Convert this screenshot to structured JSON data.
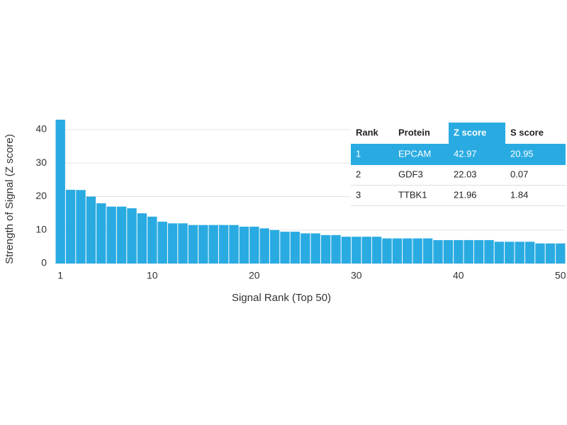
{
  "chart_data": {
    "type": "bar",
    "x_label": "Signal Rank (Top 50)",
    "y_label": "Strength of Signal (Z score)",
    "x": [
      1,
      2,
      3,
      4,
      5,
      6,
      7,
      8,
      9,
      10,
      11,
      12,
      13,
      14,
      15,
      16,
      17,
      18,
      19,
      20,
      21,
      22,
      23,
      24,
      25,
      26,
      27,
      28,
      29,
      30,
      31,
      32,
      33,
      34,
      35,
      36,
      37,
      38,
      39,
      40,
      41,
      42,
      43,
      44,
      45,
      46,
      47,
      48,
      49,
      50
    ],
    "values": [
      42.97,
      22.03,
      21.96,
      20,
      18,
      17,
      17,
      16.5,
      15,
      14,
      12.5,
      12,
      12,
      11.5,
      11.5,
      11.5,
      11.5,
      11.5,
      11,
      11,
      10.5,
      10,
      9.5,
      9.5,
      9,
      9,
      8.5,
      8.5,
      8,
      8,
      8,
      8,
      7.5,
      7.5,
      7.5,
      7.5,
      7.5,
      7,
      7,
      7,
      7,
      7,
      7,
      6.5,
      6.5,
      6.5,
      6.5,
      6,
      6,
      6
    ],
    "color": "#29abe2",
    "xlim": [
      0.5,
      50.5
    ],
    "xticks": [
      1,
      10,
      20,
      30,
      40,
      50
    ],
    "ylim": [
      0,
      45
    ],
    "yticks": [
      0,
      10,
      20,
      30,
      40
    ],
    "grid": true
  },
  "table": {
    "columns": [
      "Rank",
      "Protein",
      "Z score",
      "S score"
    ],
    "rows": [
      [
        "1",
        "EPCAM",
        "42.97",
        "20.95"
      ],
      [
        "2",
        "GDF3",
        "22.03",
        "0.07"
      ],
      [
        "3",
        "TTBK1",
        "21.96",
        "1.84"
      ]
    ],
    "highlight_color": "#29abe2"
  }
}
